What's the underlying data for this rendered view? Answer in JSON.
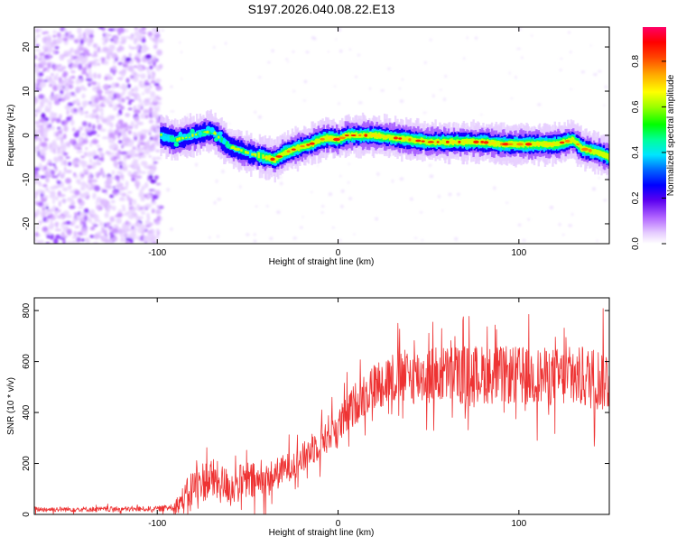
{
  "title": "S197.2026.040.08.22.E13",
  "chart_data": [
    {
      "type": "heatmap",
      "xlabel": "Height of straight line (km)",
      "ylabel": "Frequency (Hz)",
      "xlim": [
        -168,
        150
      ],
      "ylim": [
        -24.5,
        24.5
      ],
      "x_ticks": [
        -100,
        0,
        100
      ],
      "x_tick_labels": [
        "-100",
        "0",
        "100"
      ],
      "y_ticks": [
        20,
        10,
        0,
        -10,
        -20
      ],
      "y_tick_labels": [
        "20",
        "10",
        "0",
        "-10",
        "-20"
      ],
      "noise_region_x": [
        -168,
        -98
      ],
      "signal_start_x": -98,
      "ridge": {
        "x": [
          -98,
          -90,
          -80,
          -70,
          -60,
          -50,
          -40,
          -35,
          -30,
          -20,
          -15,
          -10,
          -5,
          0,
          5,
          10,
          20,
          30,
          40,
          50,
          60,
          70,
          80,
          90,
          100,
          110,
          120,
          130,
          135,
          140,
          145,
          150
        ],
        "freq": [
          0,
          -1,
          0,
          1,
          -2.5,
          -4,
          -5,
          -5.5,
          -4,
          -2.5,
          -2,
          -1,
          -0.5,
          -1,
          0,
          0,
          0,
          -0.5,
          -1,
          -1.5,
          -1.5,
          -1.5,
          -1.5,
          -2,
          -2,
          -2,
          -2,
          -1,
          -3,
          -3.5,
          -4,
          -5
        ]
      },
      "colorbar": {
        "label": "Normalized spectral amplitude",
        "range": [
          0,
          0.95
        ],
        "ticks": [
          0.0,
          0.2,
          0.4,
          0.6,
          0.8
        ],
        "tick_labels": [
          "0.0",
          "0.2",
          "0.4",
          "0.6",
          "0.8"
        ]
      }
    },
    {
      "type": "line",
      "xlabel": "Height of straight line (km)",
      "ylabel": "SNR (10 * v/v)",
      "xlim": [
        -168,
        150
      ],
      "ylim": [
        0,
        850
      ],
      "x_ticks": [
        -100,
        0,
        100
      ],
      "x_tick_labels": [
        "-100",
        "0",
        "100"
      ],
      "y_ticks": [
        0,
        200,
        400,
        600,
        800
      ],
      "y_tick_labels": [
        "0",
        "200",
        "400",
        "600",
        "800"
      ],
      "line_color": "#ee3333",
      "series": [
        {
          "name": "SNR",
          "x": [
            -168,
            -150,
            -130,
            -110,
            -100,
            -95,
            -90,
            -85,
            -80,
            -75,
            -70,
            -65,
            -60,
            -55,
            -50,
            -45,
            -40,
            -35,
            -30,
            -25,
            -20,
            -15,
            -10,
            -5,
            0,
            5,
            10,
            15,
            20,
            25,
            30,
            40,
            50,
            60,
            70,
            80,
            90,
            100,
            110,
            120,
            130,
            140,
            150
          ],
          "mean": [
            20,
            20,
            20,
            21,
            22,
            25,
            35,
            60,
            110,
            130,
            140,
            120,
            110,
            120,
            130,
            125,
            130,
            155,
            175,
            200,
            215,
            255,
            285,
            320,
            340,
            390,
            440,
            475,
            500,
            525,
            535,
            540,
            545,
            550,
            550,
            550,
            545,
            545,
            540,
            540,
            535,
            535,
            530
          ],
          "spread": [
            10,
            10,
            10,
            10,
            10,
            12,
            25,
            60,
            80,
            80,
            85,
            80,
            70,
            75,
            80,
            75,
            70,
            65,
            60,
            60,
            60,
            65,
            70,
            75,
            75,
            80,
            85,
            90,
            95,
            100,
            105,
            110,
            115,
            115,
            115,
            115,
            115,
            115,
            115,
            115,
            120,
            125,
            130
          ]
        }
      ]
    }
  ]
}
